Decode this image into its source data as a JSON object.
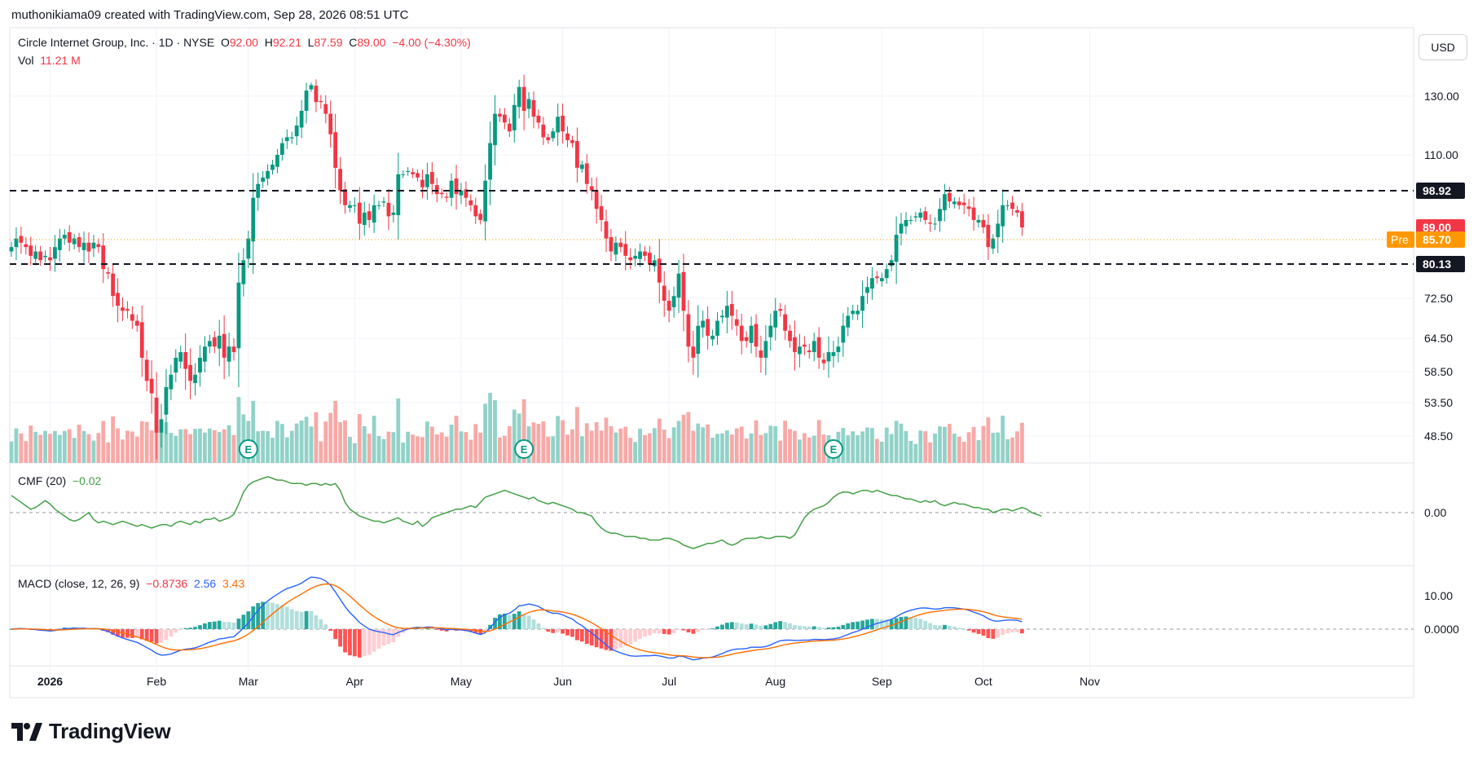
{
  "caption": "muthonikiama09 created with TradingView.com, Sep 28, 2026 08:51 UTC",
  "symbol": {
    "name": "Circle Internet Group, Inc. · 1D · NYSE",
    "o_label": "O",
    "o_value": "92.00",
    "h_label": "H",
    "h_value": "92.21",
    "l_label": "L",
    "l_value": "87.59",
    "c_label": "C",
    "c_value": "89.00",
    "change": "−4.00 (−4.30%)"
  },
  "volume": {
    "label": "Vol",
    "value": "11.21 M"
  },
  "currency": "USD",
  "logo_text": "TradingView",
  "colors": {
    "up": "#089981",
    "down": "#f23645",
    "vol_up": "#92d2c8",
    "vol_down": "#f7a9a7",
    "cmf": "#43a047",
    "macd": "#2962ff",
    "signal": "#ff6d00",
    "hist_up_strong": "#26a69a",
    "hist_up_weak": "#b2dfdb",
    "hist_down_strong": "#ff5252",
    "hist_down_weak": "#ffcdd2",
    "grid": "#f0f3fa",
    "text": "#131722",
    "axis_text": "#131722"
  },
  "chart_data": [
    {
      "type": "candlestick",
      "title": "Circle Internet Group, Inc. · 1D · NYSE",
      "ylim": [
        42,
        145
      ],
      "y_tick_labels": [
        "130.00",
        "110.00",
        "72.50",
        "64.50",
        "58.50",
        "53.50",
        "48.50"
      ],
      "x_tick_labels": [
        "2026",
        "Feb",
        "Mar",
        "Apr",
        "May",
        "Jun",
        "Jul",
        "Aug",
        "Sep",
        "Oct",
        "Nov"
      ],
      "horizontal_levels": [
        98.92,
        80.13
      ],
      "price_labels": [
        {
          "value": 98.92,
          "text": "98.92",
          "style": "black"
        },
        {
          "value": 89.0,
          "text": "89.00",
          "style": "red"
        },
        {
          "value": 85.7,
          "text": "85.70",
          "style": "orange",
          "tag": "Pre"
        },
        {
          "value": 80.13,
          "text": "80.13",
          "style": "black"
        }
      ],
      "premarket_price": 85.7,
      "earnings_markers": [
        "E",
        "E",
        "E"
      ],
      "closes": [
        84,
        86,
        85,
        84,
        82,
        83,
        81,
        82,
        81,
        84,
        86,
        87,
        85,
        86,
        84,
        85,
        83,
        85,
        84,
        79,
        78,
        73,
        71,
        70,
        70,
        68,
        67,
        61,
        57,
        55,
        49,
        51,
        56,
        58,
        61,
        62,
        59,
        57,
        58,
        61,
        63,
        64,
        63,
        65,
        61,
        63,
        62,
        76,
        81,
        86,
        97,
        101,
        103,
        105,
        107,
        110,
        114,
        116,
        116,
        120,
        125,
        133,
        136,
        128,
        128,
        124,
        117,
        106,
        99,
        95,
        95,
        95,
        90,
        93,
        91,
        95,
        95,
        96,
        92,
        93,
        104,
        104,
        105,
        104,
        103,
        100,
        104,
        101,
        98,
        98,
        97,
        102,
        98,
        99,
        97,
        95,
        92,
        91,
        102,
        114,
        124,
        123,
        121,
        118,
        127,
        135,
        125,
        129,
        123,
        121,
        116,
        115,
        118,
        123,
        118,
        115,
        114,
        106,
        107,
        101,
        99,
        94,
        91,
        86,
        83,
        85,
        84,
        82,
        81,
        82,
        83,
        82,
        80,
        81,
        76,
        72,
        70,
        73,
        78,
        70,
        63,
        61,
        67,
        68,
        65,
        65,
        68,
        69,
        71,
        69,
        67,
        64,
        64,
        67,
        63,
        61,
        64,
        67,
        70,
        70,
        66,
        64,
        62,
        63,
        63,
        62,
        64,
        61,
        60,
        62,
        62,
        63,
        67,
        69,
        70,
        70,
        73,
        75,
        77,
        77,
        77,
        79,
        81,
        87,
        90,
        91,
        91,
        92,
        93,
        91,
        90,
        90,
        94,
        98,
        96,
        96,
        95,
        95,
        94,
        91,
        91,
        89,
        84,
        86,
        90,
        95,
        95,
        94,
        93,
        89
      ]
    },
    {
      "type": "line",
      "title": "CMF (20)",
      "series_name": "CMF (20)",
      "value_label": "−0.02",
      "y_tick_labels": [
        "0.00"
      ],
      "values": [
        0.1,
        0.08,
        0.06,
        0.04,
        0.02,
        0.03,
        0.05,
        0.07,
        0.05,
        0.02,
        0.0,
        -0.02,
        -0.04,
        -0.05,
        -0.04,
        -0.02,
        0.0,
        -0.04,
        -0.06,
        -0.05,
        -0.06,
        -0.07,
        -0.06,
        -0.05,
        -0.06,
        -0.07,
        -0.08,
        -0.07,
        -0.08,
        -0.09,
        -0.08,
        -0.07,
        -0.07,
        -0.08,
        -0.06,
        -0.05,
        -0.06,
        -0.07,
        -0.05,
        -0.06,
        -0.04,
        -0.04,
        -0.03,
        -0.05,
        -0.04,
        -0.03,
        -0.01,
        0.05,
        0.12,
        0.16,
        0.18,
        0.19,
        0.2,
        0.21,
        0.2,
        0.19,
        0.19,
        0.18,
        0.17,
        0.17,
        0.17,
        0.16,
        0.17,
        0.17,
        0.16,
        0.17,
        0.16,
        0.17,
        0.13,
        0.06,
        0.02,
        0.0,
        -0.02,
        -0.03,
        -0.04,
        -0.05,
        -0.05,
        -0.06,
        -0.05,
        -0.04,
        -0.03,
        -0.05,
        -0.06,
        -0.07,
        -0.05,
        -0.08,
        -0.06,
        -0.03,
        -0.02,
        -0.01,
        0.0,
        0.01,
        0.02,
        0.02,
        0.03,
        0.04,
        0.03,
        0.06,
        0.09,
        0.1,
        0.11,
        0.12,
        0.13,
        0.12,
        0.11,
        0.1,
        0.09,
        0.08,
        0.09,
        0.07,
        0.06,
        0.05,
        0.06,
        0.05,
        0.04,
        0.03,
        0.02,
        0.0,
        0.0,
        -0.01,
        -0.02,
        -0.06,
        -0.09,
        -0.11,
        -0.12,
        -0.12,
        -0.13,
        -0.14,
        -0.14,
        -0.14,
        -0.15,
        -0.15,
        -0.16,
        -0.16,
        -0.16,
        -0.15,
        -0.15,
        -0.16,
        -0.17,
        -0.19,
        -0.2,
        -0.21,
        -0.2,
        -0.19,
        -0.18,
        -0.18,
        -0.17,
        -0.16,
        -0.18,
        -0.19,
        -0.18,
        -0.16,
        -0.15,
        -0.15,
        -0.15,
        -0.14,
        -0.15,
        -0.15,
        -0.14,
        -0.14,
        -0.14,
        -0.15,
        -0.13,
        -0.08,
        -0.03,
        0.0,
        0.02,
        0.03,
        0.04,
        0.06,
        0.09,
        0.11,
        0.12,
        0.12,
        0.11,
        0.12,
        0.13,
        0.13,
        0.12,
        0.13,
        0.12,
        0.11,
        0.1,
        0.1,
        0.09,
        0.08,
        0.08,
        0.07,
        0.06,
        0.07,
        0.06,
        0.07,
        0.05,
        0.04,
        0.05,
        0.06,
        0.05,
        0.05,
        0.04,
        0.03,
        0.03,
        0.02,
        0.02,
        0.0,
        0.01,
        0.02,
        0.02,
        0.01,
        0.02,
        0.03,
        0.02,
        0.0,
        -0.01,
        -0.02
      ]
    },
    {
      "type": "line",
      "title": "MACD (close, 12, 26, 9)",
      "series_names": [
        "MACD",
        "Signal"
      ],
      "value_labels": [
        "−0.8736",
        "2.56",
        "3.43"
      ],
      "y_tick_labels": [
        "10.00",
        "0.0000"
      ]
    }
  ]
}
